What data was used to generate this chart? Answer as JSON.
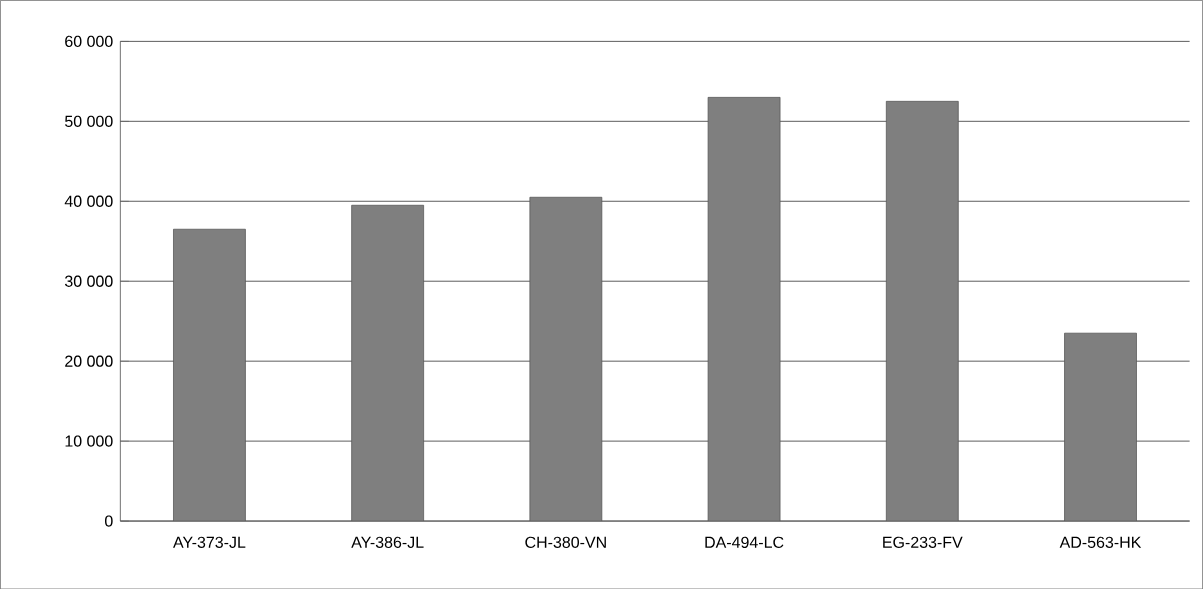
{
  "chart_data": {
    "type": "bar",
    "categories": [
      "AY-373-JL",
      "AY-386-JL",
      "CH-380-VN",
      "DA-494-LC",
      "EG-233-FV",
      "AD-563-HK"
    ],
    "values": [
      36500,
      39500,
      40500,
      53000,
      52500,
      23500
    ],
    "color": "#7f7f7f",
    "ylim": [
      0,
      60000
    ],
    "yticks": [
      0,
      {
        "value": 10000,
        "label": "10 000"
      },
      {
        "value": 20000,
        "label": "20 000"
      },
      {
        "value": 30000,
        "label": "30 000"
      },
      {
        "value": 40000,
        "label": "40 000"
      },
      {
        "value": 50000,
        "label": "50 000"
      },
      {
        "value": 60000,
        "label": "60 000"
      }
    ],
    "grid": "y"
  }
}
